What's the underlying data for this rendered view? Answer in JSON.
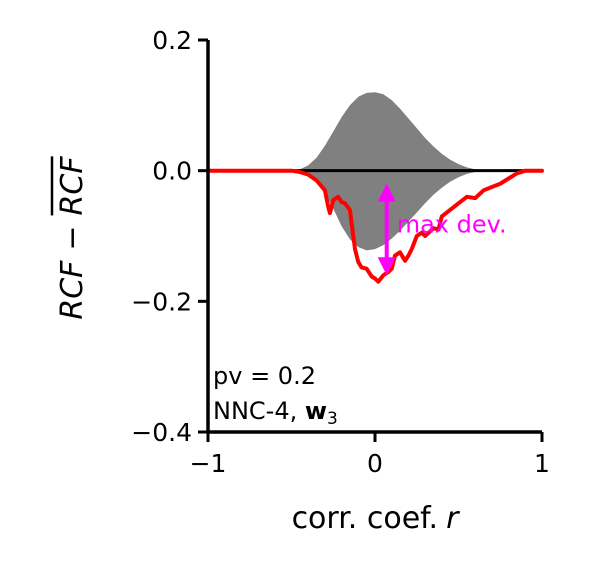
{
  "chart_data": {
    "type": "line",
    "title": "",
    "xlabel_prefix": "corr. coef.",
    "xlabel_var": "r",
    "ylabel_lhs": "RCF",
    "ylabel_op": "−",
    "ylabel_rhs": "RCF",
    "xlim": [
      -1,
      1
    ],
    "ylim": [
      -0.4,
      0.2
    ],
    "xticks": [
      -1,
      0,
      1
    ],
    "xtick_labels": [
      "−1",
      "0",
      "1"
    ],
    "yticks": [
      -0.4,
      -0.2,
      0.0,
      0.2
    ],
    "ytick_labels": [
      "−0.4",
      "−0.2",
      "0.0",
      "0.2"
    ],
    "grid": false,
    "colors": {
      "band": "#808080",
      "zero_line": "#000000",
      "series": "#ff0000",
      "annotation": "#ff00ff"
    },
    "band": {
      "name": "",
      "x": [
        -1.0,
        -0.55,
        -0.45,
        -0.4,
        -0.35,
        -0.3,
        -0.25,
        -0.2,
        -0.15,
        -0.1,
        -0.05,
        0.0,
        0.05,
        0.1,
        0.15,
        0.2,
        0.25,
        0.3,
        0.35,
        0.4,
        0.45,
        0.5,
        0.55,
        0.6,
        0.65,
        0.7,
        0.8,
        1.0
      ],
      "upper": [
        0.0,
        0.0,
        0.002,
        0.008,
        0.02,
        0.038,
        0.06,
        0.082,
        0.1,
        0.113,
        0.119,
        0.12,
        0.117,
        0.108,
        0.095,
        0.08,
        0.065,
        0.05,
        0.037,
        0.026,
        0.017,
        0.01,
        0.005,
        0.002,
        0.0005,
        0.0,
        0.0,
        0.0
      ],
      "lower": [
        0.0,
        0.0,
        -0.002,
        -0.007,
        -0.018,
        -0.035,
        -0.058,
        -0.085,
        -0.105,
        -0.117,
        -0.122,
        -0.12,
        -0.114,
        -0.104,
        -0.092,
        -0.078,
        -0.064,
        -0.05,
        -0.037,
        -0.026,
        -0.017,
        -0.01,
        -0.005,
        -0.002,
        -0.0005,
        0.0,
        0.0,
        0.0
      ]
    },
    "series": [
      {
        "name": "",
        "x": [
          -1.0,
          -0.5,
          -0.45,
          -0.4,
          -0.35,
          -0.3,
          -0.28,
          -0.27,
          -0.25,
          -0.22,
          -0.2,
          -0.18,
          -0.15,
          -0.12,
          -0.1,
          -0.08,
          -0.05,
          -0.02,
          0.0,
          0.02,
          0.05,
          0.08,
          0.1,
          0.12,
          0.15,
          0.18,
          0.2,
          0.22,
          0.25,
          0.28,
          0.3,
          0.35,
          0.38,
          0.4,
          0.45,
          0.5,
          0.55,
          0.6,
          0.65,
          0.7,
          0.75,
          0.8,
          0.85,
          0.9,
          1.0
        ],
        "y": [
          0.0,
          0.0,
          -0.002,
          -0.006,
          -0.015,
          -0.03,
          -0.055,
          -0.065,
          -0.045,
          -0.04,
          -0.048,
          -0.05,
          -0.06,
          -0.12,
          -0.14,
          -0.148,
          -0.15,
          -0.162,
          -0.165,
          -0.17,
          -0.16,
          -0.155,
          -0.15,
          -0.13,
          -0.125,
          -0.138,
          -0.13,
          -0.12,
          -0.1,
          -0.095,
          -0.1,
          -0.088,
          -0.09,
          -0.07,
          -0.06,
          -0.05,
          -0.04,
          -0.042,
          -0.03,
          -0.025,
          -0.02,
          -0.012,
          -0.004,
          0.0,
          0.0
        ]
      }
    ],
    "max_dev": {
      "label": "max dev.",
      "x": 0.07,
      "y_top": -0.02,
      "y_bottom": -0.16
    },
    "annotations": [
      "pv = 0.2",
      "NNC-4, ",
      "w",
      "3"
    ]
  }
}
